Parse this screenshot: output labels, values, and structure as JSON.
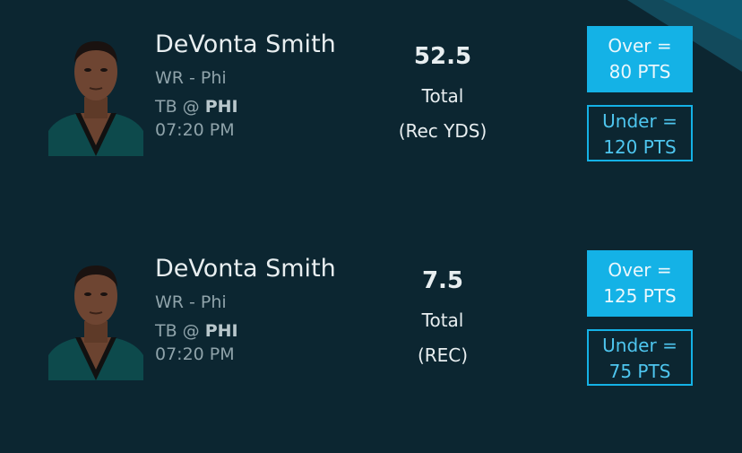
{
  "cards": [
    {
      "player": {
        "name": "DeVonta Smith",
        "position": "WR - Phi",
        "matchup": {
          "away": "TB @",
          "home": "PHI"
        },
        "time": "07:20 PM"
      },
      "line": {
        "value": 52.5,
        "label": "Total",
        "stat": "(Rec YDS)"
      },
      "over": {
        "label": "Over =",
        "points": "80 PTS"
      },
      "under": {
        "label": "Under =",
        "points": "120 PTS"
      }
    },
    {
      "player": {
        "name": "DeVonta Smith",
        "position": "WR - Phi",
        "matchup": {
          "away": "TB @",
          "home": "PHI"
        },
        "time": "07:20 PM"
      },
      "line": {
        "value": 7.5,
        "label": "Total",
        "stat": "(REC)"
      },
      "over": {
        "label": "Over =",
        "points": "125 PTS"
      },
      "under": {
        "label": "Under =",
        "points": "75 PTS"
      }
    }
  ]
}
